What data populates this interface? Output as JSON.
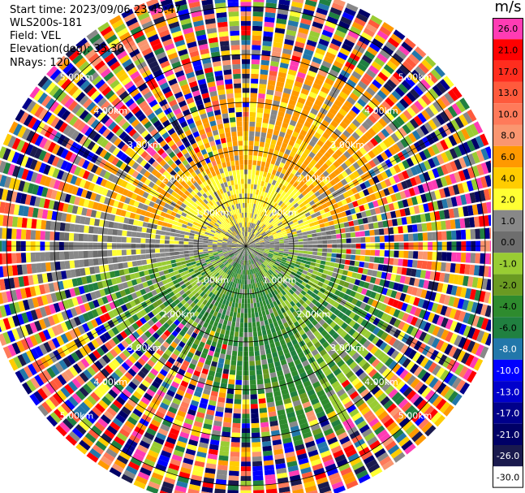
{
  "header": {
    "start_time": "Start time: 2023/09/06 23:45:47",
    "instrument": "WLS200s-181",
    "field": "Field: VEL",
    "elevation": "Elevation(deg): 35.30",
    "nrays": "NRays: 120"
  },
  "colorbar": {
    "unit": "m/s",
    "bins": [
      {
        "label": "26.0",
        "color": "#ff3cb4"
      },
      {
        "label": "21.0",
        "color": "#ff0000"
      },
      {
        "label": "17.0",
        "color": "#ff2d1e"
      },
      {
        "label": "13.0",
        "color": "#ff5a3c"
      },
      {
        "label": "10.0",
        "color": "#ff7a5a"
      },
      {
        "label": "8.0",
        "color": "#fa9670"
      },
      {
        "label": "6.0",
        "color": "#ff9900"
      },
      {
        "label": "4.0",
        "color": "#ffcc00"
      },
      {
        "label": "2.0",
        "color": "#ffff33"
      },
      {
        "label": "1.0",
        "color": "#888888"
      },
      {
        "label": "0.0",
        "color": "#6e6e6e"
      },
      {
        "label": "-1.0",
        "color": "#99cc33"
      },
      {
        "label": "-2.0",
        "color": "#6a9a22"
      },
      {
        "label": "-4.0",
        "color": "#2e8b2e"
      },
      {
        "label": "-6.0",
        "color": "#208040"
      },
      {
        "label": "-8.0",
        "color": "#2277aa"
      },
      {
        "label": "-10.0",
        "color": "#0000ff"
      },
      {
        "label": "-13.0",
        "color": "#0000cc"
      },
      {
        "label": "-17.0",
        "color": "#00008b"
      },
      {
        "label": "-21.0",
        "color": "#000066"
      },
      {
        "label": "-26.0",
        "color": "#1a1a4e"
      },
      {
        "label": "-30.0",
        "color": "#ffffff"
      }
    ]
  },
  "chart_data": {
    "type": "ppi",
    "field": "VEL",
    "n_rays": 120,
    "range_rings": [
      "1.00km",
      "2.00km",
      "3.00km",
      "4.00km",
      "5.00km"
    ],
    "max_range_km": 5.5,
    "sector_pattern": {
      "upper_hemisphere_inner": "positive (yellow/orange, +1 to +6 m/s)",
      "lower_hemisphere_inner": "negative (green, -1 to -6 m/s)",
      "outer_ranges": "noisy, all colors"
    }
  }
}
